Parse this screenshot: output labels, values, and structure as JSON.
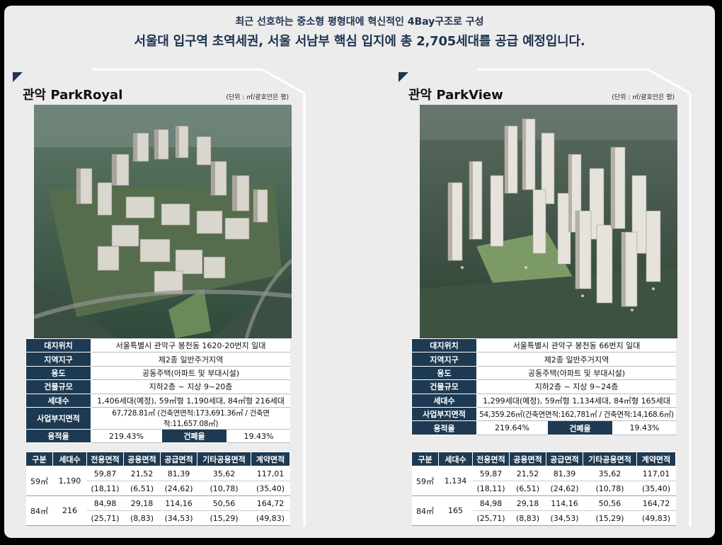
{
  "headline": {
    "line1": "최근 선호하는 중소형 평형대에 혁신적인 4Bay구조로 구성",
    "line2": "서울대 입구역 초역세권, 서울 서남부 핵심 입지에 총 2,705세대를 공급 예정입니다."
  },
  "colors": {
    "navy": "#1e3a52",
    "headline": "#1f3350",
    "background": "#ececec"
  },
  "complexes": [
    {
      "title": "관악 ParkRoyal",
      "unit": "(단위 : ㎡/괄호안은 평)",
      "info": [
        {
          "label": "대지위치",
          "value": "서울특별시 관악구 봉천동 1620-20번지 일대"
        },
        {
          "label": "지역지구",
          "value": "제2종 일반주거지역"
        },
        {
          "label": "용도",
          "value": "공동주택(아파트 및 부대시설)"
        },
        {
          "label": "건물규모",
          "value": "지하2층 ~ 지상 9~20층"
        },
        {
          "label": "세대수",
          "value": "1,406세대(예정), 59㎡형 1,190세대, 84㎡형 216세대"
        },
        {
          "label": "사업부지면적",
          "value": "67,728.81㎡ (건축연면적:173,691.36㎡ / 건축면적:11,657.08㎡)"
        }
      ],
      "floor_area_ratio": {
        "label": "용적율",
        "value": "219.43%"
      },
      "coverage_ratio": {
        "label": "건폐율",
        "value": "19.43%"
      },
      "area_headers": [
        "구분",
        "세대수",
        "전용면적",
        "공용면적",
        "공급면적",
        "기타공용면적",
        "계약면적"
      ],
      "area_rows": [
        {
          "type": "59㎡",
          "count": "1,190",
          "sqm": [
            "59,87",
            "21,52",
            "81,39",
            "35,62",
            "117,01"
          ],
          "pyeong": [
            "(18,11)",
            "(6,51)",
            "(24,62)",
            "(10,78)",
            "(35,40)"
          ]
        },
        {
          "type": "84㎡",
          "count": "216",
          "sqm": [
            "84,98",
            "29,18",
            "114,16",
            "50,56",
            "164,72"
          ],
          "pyeong": [
            "(25,71)",
            "(8,83)",
            "(34,53)",
            "(15,29)",
            "(49,83)"
          ]
        }
      ]
    },
    {
      "title": "관악 ParkView",
      "unit": "(단위 : ㎡/괄호안은 평)",
      "info": [
        {
          "label": "대지위치",
          "value": "서울특별시 관악구 봉천동 66번지 일대"
        },
        {
          "label": "지역지구",
          "value": "제2종 일반주거지역"
        },
        {
          "label": "용도",
          "value": "공동주택(아파트 및 부대시설)"
        },
        {
          "label": "건물규모",
          "value": "지하2층 ~ 지상 9~24층"
        },
        {
          "label": "세대수",
          "value": "1,299세대(예정), 59㎡형 1,134세대, 84㎡형 165세대"
        },
        {
          "label": "사업부지면적",
          "value": "54,359.26㎡(건축연면적:162,781㎡ / 건축면적:14,168.6㎡)"
        }
      ],
      "floor_area_ratio": {
        "label": "용적율",
        "value": "219.64%"
      },
      "coverage_ratio": {
        "label": "건폐율",
        "value": "19.43%"
      },
      "area_headers": [
        "구분",
        "세대수",
        "전용면적",
        "공용면적",
        "공급면적",
        "기타공용면적",
        "계약면적"
      ],
      "area_rows": [
        {
          "type": "59㎡",
          "count": "1,134",
          "sqm": [
            "59,87",
            "21,52",
            "81,39",
            "35,62",
            "117,01"
          ],
          "pyeong": [
            "(18,11)",
            "(6,51)",
            "(24,62)",
            "(10,78)",
            "(35,40)"
          ]
        },
        {
          "type": "84㎡",
          "count": "165",
          "sqm": [
            "84,98",
            "29,18",
            "114,16",
            "50,56",
            "164,72"
          ],
          "pyeong": [
            "(25,71)",
            "(8,83)",
            "(34,53)",
            "(15,29)",
            "(49,83)"
          ]
        }
      ]
    }
  ]
}
